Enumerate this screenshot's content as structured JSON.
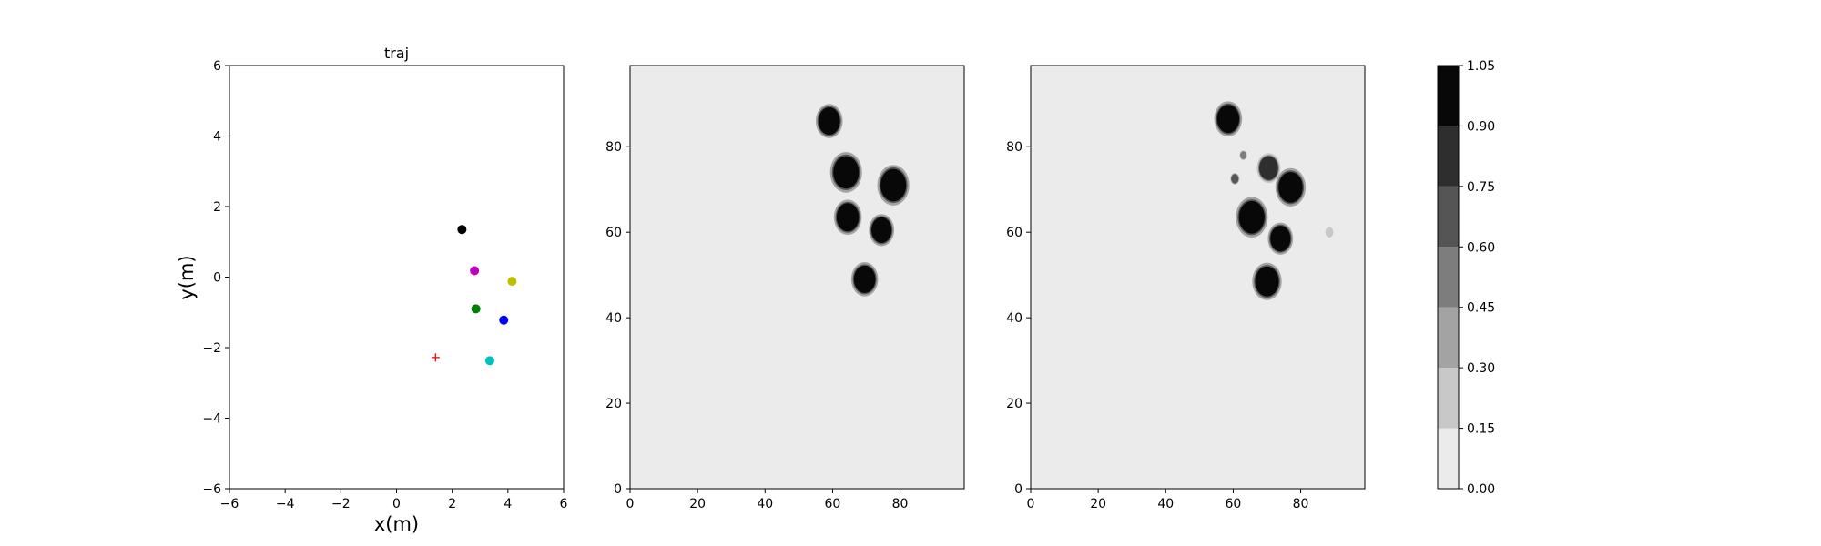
{
  "figure": {
    "background": "#ffffff"
  },
  "chart_data": [
    {
      "type": "scatter",
      "title": "traj",
      "xlabel": "x(m)",
      "ylabel": "y(m)",
      "xlim": [
        -6,
        6
      ],
      "ylim": [
        -6,
        6
      ],
      "xticks": [
        "−6",
        "−4",
        "−2",
        "0",
        "2",
        "4",
        "6"
      ],
      "yticks": [
        "−6",
        "−4",
        "−2",
        "0",
        "2",
        "4",
        "6"
      ],
      "xtick_values": [
        -6,
        -4,
        -2,
        0,
        2,
        4,
        6
      ],
      "ytick_values": [
        -6,
        -4,
        -2,
        0,
        2,
        4,
        6
      ],
      "grid": false,
      "points": [
        {
          "x": 2.35,
          "y": 1.35,
          "color": "#000000",
          "marker": "circle"
        },
        {
          "x": 2.8,
          "y": 0.18,
          "color": "#bf00bf",
          "marker": "circle"
        },
        {
          "x": 4.15,
          "y": -0.12,
          "color": "#bfbf00",
          "marker": "circle"
        },
        {
          "x": 2.85,
          "y": -0.9,
          "color": "#008000",
          "marker": "circle"
        },
        {
          "x": 3.85,
          "y": -1.22,
          "color": "#0000ff",
          "marker": "circle"
        },
        {
          "x": 3.35,
          "y": -2.37,
          "color": "#00bfbf",
          "marker": "circle"
        },
        {
          "x": 1.4,
          "y": -2.28,
          "color": "#ff0000",
          "marker": "plus"
        }
      ]
    },
    {
      "type": "heatmap",
      "xlim": [
        0,
        99
      ],
      "ylim": [
        0,
        99
      ],
      "xticks": [
        "0",
        "20",
        "40",
        "60",
        "80"
      ],
      "yticks": [
        "0",
        "20",
        "40",
        "60",
        "80"
      ],
      "xtick_values": [
        0,
        20,
        40,
        60,
        80
      ],
      "ytick_values": [
        0,
        20,
        40,
        60,
        80
      ],
      "background_value": 0.0,
      "blobs": [
        {
          "x": 59,
          "y": 86,
          "r": 3.2,
          "value": 1.0
        },
        {
          "x": 64,
          "y": 74,
          "r": 3.8,
          "value": 1.0
        },
        {
          "x": 78,
          "y": 71,
          "r": 3.8,
          "value": 1.0
        },
        {
          "x": 64.5,
          "y": 63.5,
          "r": 3.3,
          "value": 1.0
        },
        {
          "x": 74.5,
          "y": 60.5,
          "r": 3.0,
          "value": 1.0
        },
        {
          "x": 69.5,
          "y": 49,
          "r": 3.2,
          "value": 1.0
        }
      ]
    },
    {
      "type": "heatmap",
      "xlim": [
        0,
        99
      ],
      "ylim": [
        0,
        99
      ],
      "xticks": [
        "0",
        "20",
        "40",
        "60",
        "80"
      ],
      "yticks": [
        "0",
        "20",
        "40",
        "60",
        "80"
      ],
      "xtick_values": [
        0,
        20,
        40,
        60,
        80
      ],
      "ytick_values": [
        0,
        20,
        40,
        60,
        80
      ],
      "background_value": 0.0,
      "blobs": [
        {
          "x": 58.5,
          "y": 86.5,
          "r": 3.3,
          "value": 1.0
        },
        {
          "x": 70.5,
          "y": 75,
          "r": 2.8,
          "value": 0.85
        },
        {
          "x": 77,
          "y": 70.5,
          "r": 3.6,
          "value": 1.0
        },
        {
          "x": 65.5,
          "y": 63.5,
          "r": 3.8,
          "value": 1.0
        },
        {
          "x": 74,
          "y": 58.5,
          "r": 3.0,
          "value": 0.9
        },
        {
          "x": 70,
          "y": 48.5,
          "r": 3.5,
          "value": 1.0
        },
        {
          "x": 63,
          "y": 78,
          "r": 0.9,
          "value": 0.55
        },
        {
          "x": 60.5,
          "y": 72.5,
          "r": 1.1,
          "value": 0.6
        },
        {
          "x": 88.5,
          "y": 60,
          "r": 1.2,
          "value": 0.2
        }
      ]
    },
    {
      "type": "colorbar",
      "boundaries": [
        0.0,
        0.15,
        0.3,
        0.45,
        0.6,
        0.75,
        0.9,
        1.05
      ],
      "tick_labels": [
        "0.00",
        "0.15",
        "0.30",
        "0.45",
        "0.60",
        "0.75",
        "0.90",
        "1.05"
      ],
      "colors": [
        "#ebebeb",
        "#c8c8c8",
        "#a3a3a3",
        "#7d7d7d",
        "#555555",
        "#2e2e2e",
        "#080808"
      ]
    }
  ]
}
